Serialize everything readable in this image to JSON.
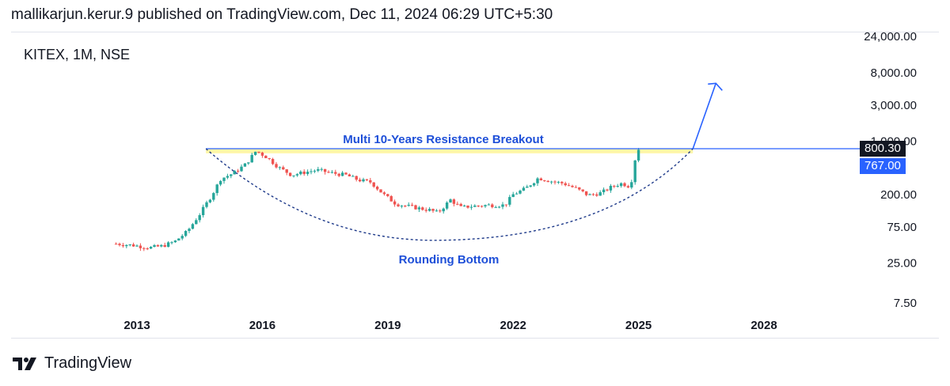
{
  "header": {
    "published_text": "mallikarjun.kerur.9 published on TradingView.com, Dec 11, 2024 06:29 UTC+5:30"
  },
  "symbol_label": "KITEX, 1M, NSE",
  "footer": {
    "brand": "TradingView",
    "logo_icon": "tradingview-logo-icon"
  },
  "colors": {
    "up": "#26a69a",
    "down": "#ef5350",
    "annotation": "#2962ff",
    "resistance_band": "#fff59d",
    "price_tag_last": "#131722",
    "price_tag_level": "#2962ff"
  },
  "chart_data": {
    "type": "candlestick",
    "symbol": "KITEX",
    "interval": "1M",
    "exchange": "NSE",
    "y_scale": "log",
    "y_ticks": [
      "24,000.00",
      "8,000.00",
      "3,000.00",
      "1,000.00",
      "200.00",
      "75.00",
      "25.00",
      "7.50"
    ],
    "y_tick_values": [
      24000,
      8000,
      3000,
      1000,
      200,
      75,
      25,
      7.5
    ],
    "x_ticks": [
      "2013",
      "2016",
      "2019",
      "2022",
      "2025",
      "2028"
    ],
    "x_tick_values": [
      2013,
      2016,
      2019,
      2022,
      2025,
      2028
    ],
    "price_tags": {
      "last": "800.30",
      "level": "767.00"
    },
    "annotations": {
      "resistance_label": "Multi 10-Years Resistance Breakout",
      "pattern_label": "Rounding Bottom",
      "resistance_level": 800
    },
    "trend_points": [
      [
        2012.5,
        45
      ],
      [
        2012.9,
        43
      ],
      [
        2013.3,
        40
      ],
      [
        2013.6,
        42
      ],
      [
        2013.9,
        48
      ],
      [
        2014.2,
        65
      ],
      [
        2014.5,
        110
      ],
      [
        2014.8,
        200
      ],
      [
        2015.0,
        320
      ],
      [
        2015.3,
        380
      ],
      [
        2015.6,
        500
      ],
      [
        2015.85,
        750
      ],
      [
        2016.1,
        620
      ],
      [
        2016.4,
        450
      ],
      [
        2016.7,
        360
      ],
      [
        2017.0,
        390
      ],
      [
        2017.3,
        420
      ],
      [
        2017.7,
        380
      ],
      [
        2018.0,
        360
      ],
      [
        2018.3,
        310
      ],
      [
        2018.6,
        290
      ],
      [
        2018.9,
        200
      ],
      [
        2019.2,
        150
      ],
      [
        2019.5,
        140
      ],
      [
        2019.8,
        130
      ],
      [
        2020.0,
        125
      ],
      [
        2020.2,
        115
      ],
      [
        2020.5,
        170
      ],
      [
        2020.75,
        135
      ],
      [
        2021.0,
        140
      ],
      [
        2021.4,
        145
      ],
      [
        2021.8,
        145
      ],
      [
        2022.0,
        200
      ],
      [
        2022.3,
        240
      ],
      [
        2022.6,
        330
      ],
      [
        2022.9,
        300
      ],
      [
        2023.2,
        280
      ],
      [
        2023.5,
        240
      ],
      [
        2023.8,
        195
      ],
      [
        2024.1,
        210
      ],
      [
        2024.4,
        260
      ],
      [
        2024.6,
        280
      ],
      [
        2024.75,
        260
      ],
      [
        2024.85,
        320
      ],
      [
        2024.93,
        650
      ],
      [
        2025.0,
        800
      ]
    ]
  }
}
